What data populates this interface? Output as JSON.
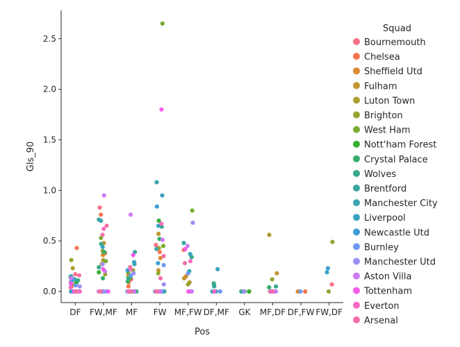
{
  "chart_data": {
    "type": "scatter",
    "subtype": "strip",
    "xlabel": "Pos",
    "ylabel": "Gls_90",
    "categories": [
      "DF",
      "FW,MF",
      "MF",
      "FW",
      "MF,FW",
      "DF,MF",
      "GK",
      "MF,DF",
      "DF,FW",
      "FW,DF"
    ],
    "ylim": [
      -0.11,
      2.78
    ],
    "yticks": [
      0.0,
      0.5,
      1.0,
      1.5,
      2.0,
      2.5
    ],
    "ytick_labels": [
      "0.0",
      "0.5",
      "1.0",
      "1.5",
      "2.0",
      "2.5"
    ],
    "legend": {
      "title": "Squad",
      "placement": "right"
    },
    "series": [
      {
        "name": "Bournemouth",
        "color": "#f77189",
        "points": [
          [
            "DF",
            0.17
          ],
          [
            "DF",
            0.0
          ],
          [
            "FW,MF",
            0.83
          ],
          [
            "FW,MF",
            0.0
          ],
          [
            "MF",
            0.12
          ],
          [
            "MF",
            0.0
          ],
          [
            "FW",
            0.46
          ],
          [
            "FW",
            0.0
          ],
          [
            "MF,FW",
            0.0
          ],
          [
            "DF,MF",
            0.0
          ],
          [
            "GK",
            0.0
          ],
          [
            "FW,DF",
            0.07
          ]
        ]
      },
      {
        "name": "Chelsea",
        "color": "#f7754f",
        "points": [
          [
            "DF",
            0.43
          ],
          [
            "DF",
            0.1
          ],
          [
            "DF",
            0.0
          ],
          [
            "FW,MF",
            0.76
          ],
          [
            "FW,MF",
            0.38
          ],
          [
            "MF",
            0.05
          ],
          [
            "MF",
            0.0
          ],
          [
            "FW",
            0.39
          ],
          [
            "FW",
            0.0
          ],
          [
            "MF,FW",
            0.41
          ],
          [
            "DF,FW",
            0.0
          ]
        ]
      },
      {
        "name": "Sheffield Utd",
        "color": "#dc8932",
        "points": [
          [
            "DF",
            0.0
          ],
          [
            "DF",
            0.05
          ],
          [
            "FW,MF",
            0.36
          ],
          [
            "FW,MF",
            0.0
          ],
          [
            "MF",
            0.09
          ],
          [
            "MF",
            0.0
          ],
          [
            "FW",
            0.33
          ],
          [
            "FW",
            0.0
          ],
          [
            "MF,FW",
            0.15
          ],
          [
            "DF,FW",
            0.0
          ],
          [
            "GK",
            0.0
          ]
        ]
      },
      {
        "name": "Fulham",
        "color": "#c39532",
        "points": [
          [
            "DF",
            0.07
          ],
          [
            "DF",
            0.0
          ],
          [
            "FW,MF",
            0.48
          ],
          [
            "FW,MF",
            0.27
          ],
          [
            "MF",
            0.16
          ],
          [
            "MF",
            0.0
          ],
          [
            "FW",
            0.57
          ],
          [
            "FW",
            0.21
          ],
          [
            "MF,FW",
            0.13
          ],
          [
            "MF,DF",
            0.18
          ]
        ]
      },
      {
        "name": "Luton Town",
        "color": "#ae9d31",
        "points": [
          [
            "DF",
            0.23
          ],
          [
            "DF",
            0.0
          ],
          [
            "FW,MF",
            0.31
          ],
          [
            "MF",
            0.12
          ],
          [
            "MF",
            0.0
          ],
          [
            "FW",
            0.43
          ],
          [
            "FW",
            0.0
          ],
          [
            "MF,FW",
            0.09
          ],
          [
            "MF,DF",
            0.56
          ],
          [
            "MF,DF",
            0.0
          ],
          [
            "GK",
            0.0
          ]
        ]
      },
      {
        "name": "Brighton",
        "color": "#97a431",
        "points": [
          [
            "DF",
            0.31
          ],
          [
            "DF",
            0.0
          ],
          [
            "FW,MF",
            0.4
          ],
          [
            "FW,MF",
            0.17
          ],
          [
            "MF",
            0.21
          ],
          [
            "MF",
            0.0
          ],
          [
            "FW",
            0.18
          ],
          [
            "FW",
            0.0
          ],
          [
            "MF,FW",
            0.07
          ],
          [
            "MF,DF",
            0.12
          ],
          [
            "FW,DF",
            0.49
          ],
          [
            "FW,DF",
            0.0
          ]
        ]
      },
      {
        "name": "West Ham",
        "color": "#77ab31",
        "points": [
          [
            "DF",
            0.12
          ],
          [
            "DF",
            0.0
          ],
          [
            "FW,MF",
            0.53
          ],
          [
            "FW,MF",
            0.3
          ],
          [
            "MF",
            0.19
          ],
          [
            "MF",
            0.0
          ],
          [
            "FW",
            2.65
          ],
          [
            "FW",
            0.45
          ],
          [
            "FW",
            0.0
          ],
          [
            "MF,FW",
            0.8
          ],
          [
            "MF,FW",
            0.0
          ],
          [
            "MF,DF",
            0.0
          ]
        ]
      },
      {
        "name": "Nott'ham Forest",
        "color": "#33b032",
        "points": [
          [
            "DF",
            0.09
          ],
          [
            "DF",
            0.0
          ],
          [
            "FW,MF",
            0.19
          ],
          [
            "FW,MF",
            0.0
          ],
          [
            "MF",
            0.14
          ],
          [
            "MF",
            0.0
          ],
          [
            "FW",
            0.7
          ],
          [
            "FW",
            0.0
          ],
          [
            "MF,FW",
            0.0
          ],
          [
            "DF,MF",
            0.06
          ],
          [
            "GK",
            0.0
          ]
        ]
      },
      {
        "name": "Crystal Palace",
        "color": "#35ad6c",
        "points": [
          [
            "DF",
            0.14
          ],
          [
            "DF",
            0.0
          ],
          [
            "FW,MF",
            0.39
          ],
          [
            "FW,MF",
            0.13
          ],
          [
            "MF",
            0.1
          ],
          [
            "MF",
            0.0
          ],
          [
            "FW",
            0.52
          ],
          [
            "FW",
            0.0
          ],
          [
            "MF,FW",
            0.0
          ],
          [
            "DF,MF",
            0.0
          ],
          [
            "MF,DF",
            0.04
          ]
        ]
      },
      {
        "name": "Wolves",
        "color": "#37aa8c",
        "points": [
          [
            "DF",
            0.11
          ],
          [
            "DF",
            0.0
          ],
          [
            "FW,MF",
            0.47
          ],
          [
            "FW,MF",
            0.24
          ],
          [
            "MF",
            0.13
          ],
          [
            "MF",
            0.0
          ],
          [
            "FW",
            0.64
          ],
          [
            "FW",
            0.0
          ],
          [
            "MF,FW",
            0.34
          ],
          [
            "DF,MF",
            0.08
          ],
          [
            "MF,DF",
            0.05
          ],
          [
            "GK",
            0.0
          ]
        ]
      },
      {
        "name": "Brentford",
        "color": "#38a89e",
        "points": [
          [
            "DF",
            0.08
          ],
          [
            "DF",
            0.0
          ],
          [
            "FW,MF",
            0.71
          ],
          [
            "FW,MF",
            0.0
          ],
          [
            "MF",
            0.39
          ],
          [
            "MF",
            0.0
          ],
          [
            "FW",
            0.42
          ],
          [
            "FW",
            0.0
          ],
          [
            "MF,FW",
            0.48
          ],
          [
            "DF,MF",
            0.05
          ],
          [
            "GK",
            0.0
          ]
        ]
      },
      {
        "name": "Manchester City",
        "color": "#3aa5b0",
        "points": [
          [
            "DF",
            0.15
          ],
          [
            "DF",
            0.0
          ],
          [
            "FW,MF",
            0.7
          ],
          [
            "FW,MF",
            0.0
          ],
          [
            "MF",
            0.27
          ],
          [
            "MF",
            0.0
          ],
          [
            "FW",
            1.08
          ],
          [
            "FW",
            0.0
          ],
          [
            "MF,FW",
            0.2
          ],
          [
            "DF,MF",
            0.0
          ],
          [
            "MF,DF",
            0.0
          ]
        ]
      },
      {
        "name": "Liverpool",
        "color": "#3ba3c1",
        "points": [
          [
            "DF",
            0.1
          ],
          [
            "DF",
            0.0
          ],
          [
            "FW,MF",
            0.44
          ],
          [
            "FW,MF",
            0.0
          ],
          [
            "MF",
            0.29
          ],
          [
            "MF",
            0.0
          ],
          [
            "FW",
            0.95
          ],
          [
            "FW",
            0.65
          ],
          [
            "FW",
            0.0
          ],
          [
            "MF,FW",
            0.37
          ],
          [
            "DF,MF",
            0.22
          ],
          [
            "FW,DF",
            0.19
          ]
        ]
      },
      {
        "name": "Newcastle Utd",
        "color": "#3e9fd6",
        "points": [
          [
            "DF",
            0.12
          ],
          [
            "DF",
            0.0
          ],
          [
            "FW,MF",
            0.0
          ],
          [
            "MF",
            0.21
          ],
          [
            "MF",
            0.0
          ],
          [
            "FW",
            0.84
          ],
          [
            "FW",
            0.28
          ],
          [
            "FW",
            0.0
          ],
          [
            "MF,FW",
            0.0
          ],
          [
            "DF,MF",
            0.0
          ],
          [
            "FW,DF",
            0.23
          ]
        ]
      },
      {
        "name": "Burnley",
        "color": "#6e9af4",
        "points": [
          [
            "DF",
            0.06
          ],
          [
            "DF",
            0.0
          ],
          [
            "FW,MF",
            0.0
          ],
          [
            "MF",
            0.16
          ],
          [
            "MF",
            0.0
          ],
          [
            "FW",
            0.26
          ],
          [
            "FW",
            0.0
          ],
          [
            "MF,FW",
            0.18
          ],
          [
            "DF,MF",
            0.0
          ],
          [
            "MF,DF",
            0.0
          ],
          [
            "DF,FW",
            0.0
          ]
        ]
      },
      {
        "name": "Manchester Utd",
        "color": "#9b91f4",
        "points": [
          [
            "DF",
            0.05
          ],
          [
            "DF",
            0.0
          ],
          [
            "FW,MF",
            0.27
          ],
          [
            "FW,MF",
            0.0
          ],
          [
            "MF",
            0.18
          ],
          [
            "MF",
            0.0
          ],
          [
            "FW",
            0.07
          ],
          [
            "FW",
            0.0
          ],
          [
            "MF,FW",
            0.68
          ],
          [
            "MF,FW",
            0.0
          ],
          [
            "MF,DF",
            0.0
          ],
          [
            "GK",
            0.0
          ]
        ]
      },
      {
        "name": "Aston Villa",
        "color": "#cc7af4",
        "points": [
          [
            "DF",
            0.13
          ],
          [
            "DF",
            0.0
          ],
          [
            "FW,MF",
            0.95
          ],
          [
            "FW,MF",
            0.2
          ],
          [
            "MF",
            0.76
          ],
          [
            "MF",
            0.0
          ],
          [
            "FW",
            0.51
          ],
          [
            "FW",
            0.0
          ],
          [
            "MF,FW",
            0.45
          ],
          [
            "MF,FW",
            0.0
          ],
          [
            "MF,DF",
            0.0
          ]
        ]
      },
      {
        "name": "Tottenham",
        "color": "#f45deb",
        "points": [
          [
            "DF",
            0.08
          ],
          [
            "DF",
            0.0
          ],
          [
            "FW,MF",
            0.22
          ],
          [
            "FW,MF",
            0.0
          ],
          [
            "MF",
            0.36
          ],
          [
            "MF",
            0.0
          ],
          [
            "FW",
            1.8
          ],
          [
            "FW",
            0.0
          ],
          [
            "MF,FW",
            0.42
          ],
          [
            "MF,FW",
            0.0
          ],
          [
            "MF,DF",
            0.0
          ]
        ]
      },
      {
        "name": "Everton",
        "color": "#f56cc4",
        "points": [
          [
            "DF",
            0.04
          ],
          [
            "DF",
            0.0
          ],
          [
            "FW,MF",
            0.62
          ],
          [
            "FW,MF",
            0.0
          ],
          [
            "MF",
            0.22
          ],
          [
            "MF",
            0.0
          ],
          [
            "FW",
            0.67
          ],
          [
            "FW",
            0.0
          ],
          [
            "MF,FW",
            0.3
          ],
          [
            "DF,MF",
            0.0
          ]
        ]
      },
      {
        "name": "Arsenal",
        "color": "#f56fa7",
        "points": [
          [
            "DF",
            0.16
          ],
          [
            "DF",
            0.0
          ],
          [
            "FW,MF",
            0.56
          ],
          [
            "FW,MF",
            0.65
          ],
          [
            "FW,MF",
            0.0
          ],
          [
            "MF",
            0.24
          ],
          [
            "MF",
            0.0
          ],
          [
            "FW",
            0.35
          ],
          [
            "FW",
            0.13
          ],
          [
            "FW",
            0.0
          ],
          [
            "MF,FW",
            0.28
          ],
          [
            "MF,DF",
            0.0
          ]
        ]
      }
    ]
  }
}
